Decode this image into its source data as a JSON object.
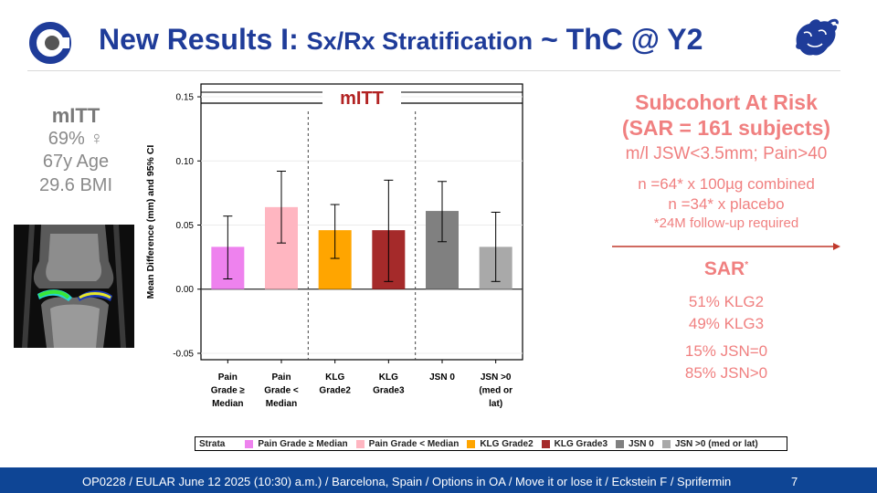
{
  "header": {
    "title_main": "New Results I: ",
    "title_mid": "Sx/Rx Stratification",
    "title_end": " ~ ThC @ Y2"
  },
  "left_stats": {
    "heading": "mITT",
    "female": "69% ♀",
    "age": "67y Age",
    "bmi": "29.6 BMI"
  },
  "chart_data": {
    "type": "bar",
    "title": "mITT",
    "ylabel": "Mean Difference (mm) and 95% CI",
    "xlabel": "",
    "ylim": [
      -0.055,
      0.16
    ],
    "yticks": [
      -0.05,
      0.0,
      0.05,
      0.1,
      0.15
    ],
    "ytick_labels": [
      "-0.05",
      "0.00",
      "0.05",
      "0.10",
      "0.15"
    ],
    "grid": true,
    "categories": [
      [
        "Pain",
        "Grade ≥",
        "Median"
      ],
      [
        "Pain",
        "Grade <",
        "Median"
      ],
      [
        "KLG",
        "Grade2"
      ],
      [
        "KLG",
        "Grade3"
      ],
      [
        "JSN 0"
      ],
      [
        "JSN >0",
        "(med or",
        "lat)"
      ]
    ],
    "values": [
      0.033,
      0.064,
      0.046,
      0.046,
      0.061,
      0.033
    ],
    "ci_low": [
      0.008,
      0.036,
      0.024,
      0.006,
      0.037,
      0.006
    ],
    "ci_high": [
      0.057,
      0.092,
      0.066,
      0.085,
      0.084,
      0.06
    ],
    "colors": [
      "#ee82ee",
      "#ffb6c1",
      "#ffa500",
      "#a52a2a",
      "#808080",
      "#a9a9a9"
    ],
    "group_dividers_after": [
      2,
      4
    ],
    "legend": {
      "title": "Strata",
      "entries": [
        {
          "label": "Pain Grade ≥ Median",
          "color": "#ee82ee"
        },
        {
          "label": "Pain Grade < Median",
          "color": "#ffb6c1"
        },
        {
          "label": "KLG Grade2",
          "color": "#ffa500"
        },
        {
          "label": "KLG Grade3",
          "color": "#a52a2a"
        },
        {
          "label": "JSN 0",
          "color": "#808080"
        },
        {
          "label": "JSN >0 (med or lat)",
          "color": "#a9a9a9"
        }
      ]
    }
  },
  "right_panel": {
    "title_line1": "Subcohort At Risk",
    "title_line2": "(SAR = 161 subjects)",
    "criteria": "m/l JSW<3.5mm; Pain>40",
    "n_combined": "n =64* x 100µg combined",
    "n_placebo": "n =34* x placebo",
    "followup_note": "*24M follow-up required",
    "sar_label": "SAR",
    "sar_sup": "*",
    "klg2": "51% KLG2",
    "klg3": "49% KLG3",
    "jsn0": "15% JSN=0",
    "jsn_gt0": "85% JSN>0"
  },
  "footer": {
    "text": "OP0228 / EULAR  June 12 2025 (10:30) a.m.) / Barcelona, Spain / Options in OA / Move it or lose it / Eckstein F / Sprifermin",
    "page": "7"
  },
  "colors": {
    "title_blue": "#1f3c99",
    "accent_salmon": "#f08080",
    "footer_blue": "#0e4595",
    "chart_title_red": "#b22222",
    "arrow_red": "#c0392b"
  }
}
